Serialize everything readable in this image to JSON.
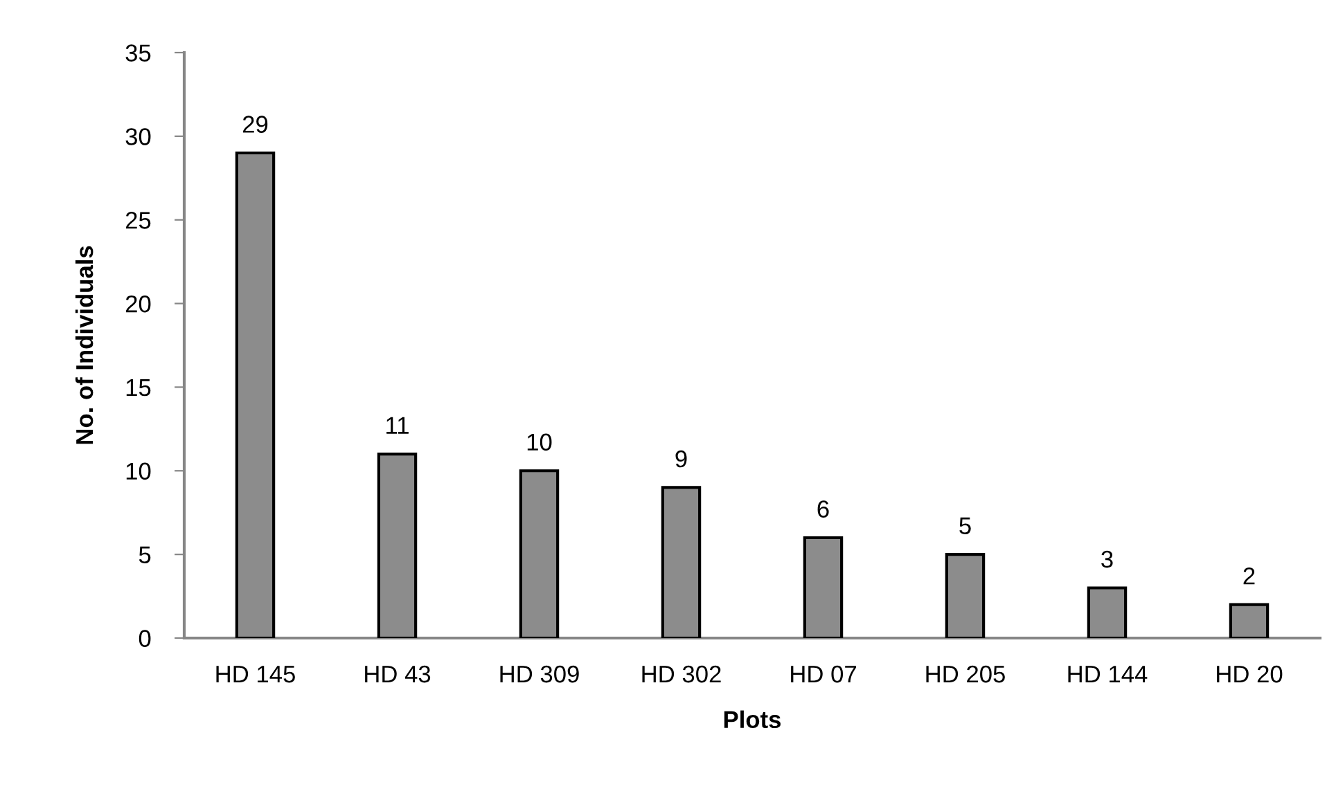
{
  "chart_data": {
    "type": "bar",
    "xlabel": "Plots",
    "ylabel": "No. of Individuals",
    "categories": [
      "HD 145",
      "HD 43",
      "HD 309",
      "HD 302",
      "HD 07",
      "HD 205",
      "HD 144",
      "HD 20"
    ],
    "values": [
      29,
      11,
      10,
      9,
      6,
      5,
      3,
      2
    ],
    "color": "#8c8c8c",
    "ylim": [
      0,
      35
    ],
    "yticks": [
      0,
      5,
      10,
      15,
      20,
      25,
      30,
      35
    ],
    "grid": false,
    "legend": false,
    "data_labels": true
  }
}
